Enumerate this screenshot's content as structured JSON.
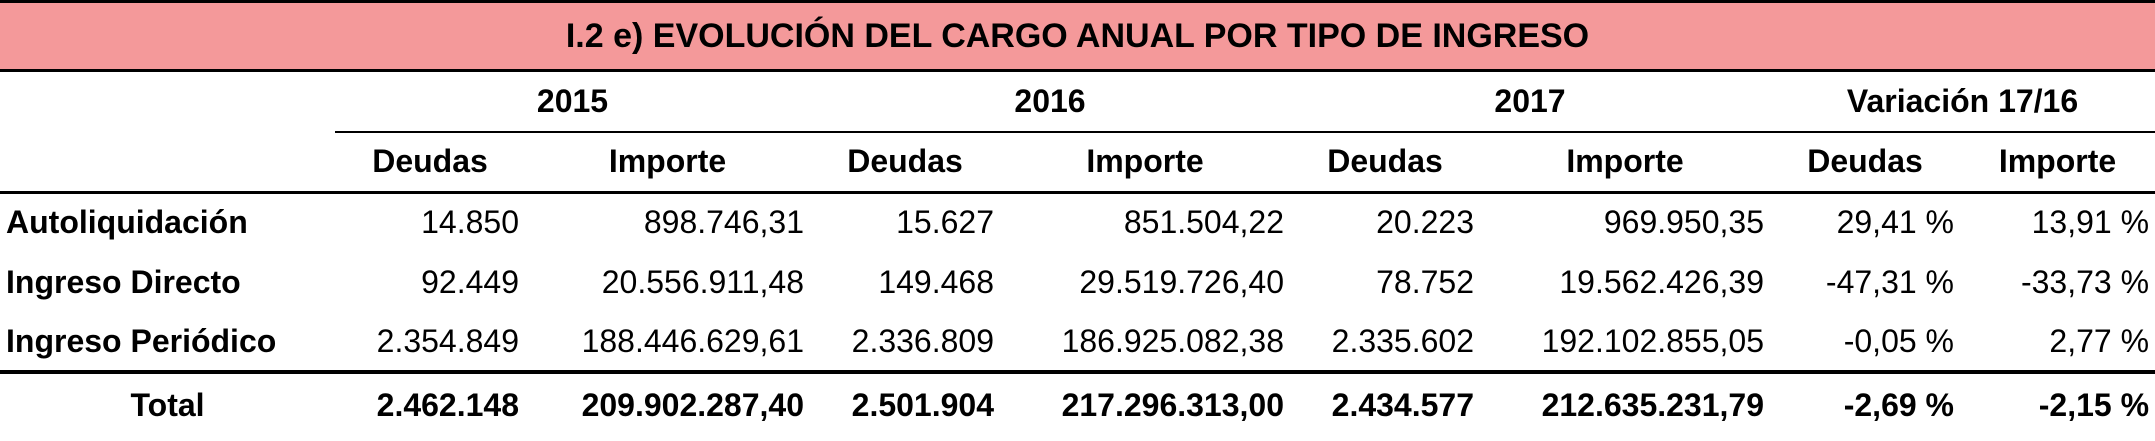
{
  "title": "I.2 e) EVOLUCIÓN DEL CARGO ANUAL POR TIPO DE INGRESO",
  "years": [
    "2015",
    "2016",
    "2017",
    "Variación 17/16"
  ],
  "subheaders": [
    "Deudas",
    "Importe",
    "Deudas",
    "Importe",
    "Deudas",
    "Importe",
    "Deudas",
    "Importe"
  ],
  "rows": [
    {
      "label": "Autoliquidación",
      "values": [
        "14.850",
        "898.746,31",
        "15.627",
        "851.504,22",
        "20.223",
        "969.950,35",
        "29,41 %",
        "13,91 %"
      ]
    },
    {
      "label": "Ingreso Directo",
      "values": [
        "92.449",
        "20.556.911,48",
        "149.468",
        "29.519.726,40",
        "78.752",
        "19.562.426,39",
        "-47,31 %",
        "-33,73 %"
      ]
    },
    {
      "label": "Ingreso Periódico",
      "values": [
        "2.354.849",
        "188.446.629,61",
        "2.336.809",
        "186.925.082,38",
        "2.335.602",
        "192.102.855,05",
        "-0,05 %",
        "2,77 %"
      ]
    }
  ],
  "total": {
    "label": "Total",
    "values": [
      "2.462.148",
      "209.902.287,40",
      "2.501.904",
      "217.296.313,00",
      "2.434.577",
      "212.635.231,79",
      "-2,69 %",
      "-2,15 %"
    ]
  },
  "colors": {
    "title_background": "#f4999a",
    "rule": "#000000"
  }
}
